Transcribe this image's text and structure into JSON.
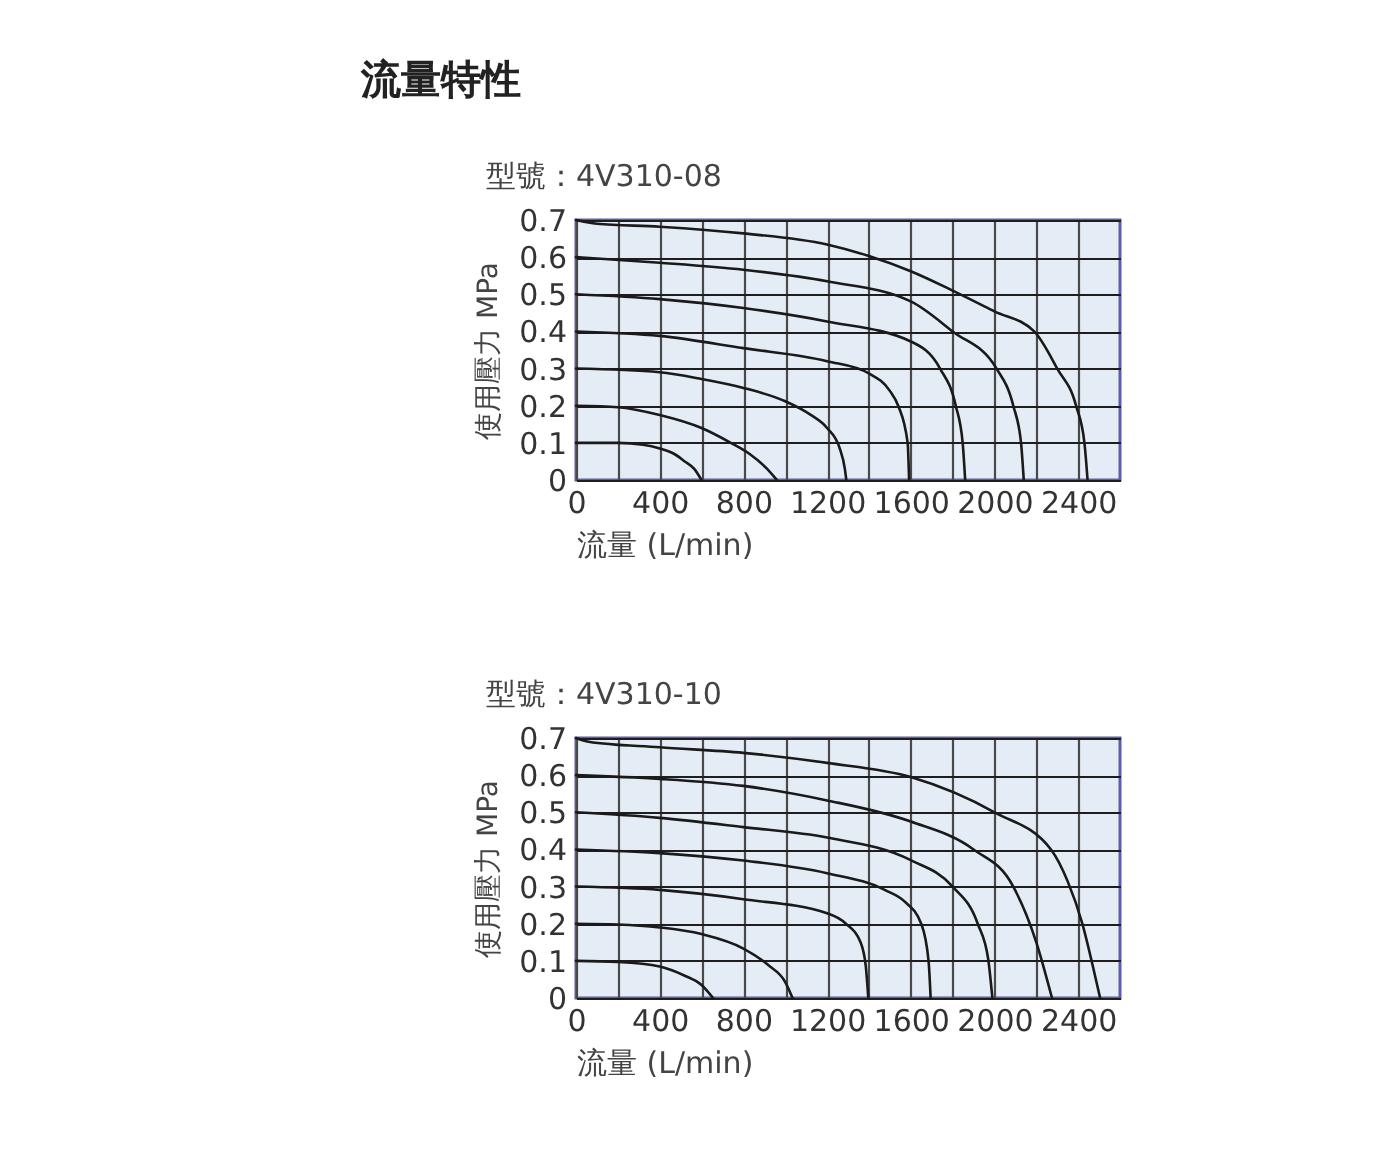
{
  "chart_data": [
    {
      "type": "line",
      "title": "流量特性",
      "subtitle": "型號：4V310-08",
      "xlabel": "流量 (L/min)",
      "ylabel": "使用壓力 MPa",
      "xlim": [
        0,
        2600
      ],
      "xticks": [
        0,
        {
          "value": 200,
          "label": null
        },
        400,
        {
          "value": 600,
          "label": null
        },
        800,
        {
          "value": 1000,
          "label": null
        },
        1200,
        {
          "value": 1400,
          "label": null
        },
        1600,
        {
          "value": 1800,
          "label": null
        },
        2000,
        {
          "value": 2200,
          "label": null
        },
        2400
      ],
      "ylim": [
        0,
        0.7
      ],
      "yticks": [
        0,
        0.1,
        0.2,
        0.3,
        0.4,
        0.5,
        0.6,
        0.7
      ],
      "grid": true,
      "series": [
        {
          "color": "#1a1a1a",
          "x": [
            0,
            200,
            320,
            400,
            470,
            520,
            565,
            600
          ],
          "values": [
            0.1,
            0.1,
            0.095,
            0.085,
            0.07,
            0.05,
            0.03,
            0
          ]
        },
        {
          "color": "#1a1a1a",
          "x": [
            0,
            200,
            400,
            600,
            740,
            830,
            910,
            960
          ],
          "values": [
            0.2,
            0.196,
            0.175,
            0.14,
            0.1,
            0.07,
            0.032,
            0
          ]
        },
        {
          "color": "#1a1a1a",
          "x": [
            0,
            400,
            600,
            800,
            1000,
            1120,
            1200,
            1260,
            1285,
            1292
          ],
          "values": [
            0.3,
            0.29,
            0.272,
            0.248,
            0.212,
            0.176,
            0.14,
            0.086,
            0.03,
            0
          ]
        },
        {
          "color": "#1a1a1a",
          "x": [
            0,
            400,
            800,
            1200,
            1400,
            1500,
            1540,
            1585,
            1592
          ],
          "values": [
            0.4,
            0.388,
            0.355,
            0.32,
            0.287,
            0.24,
            0.2,
            0.1,
            0
          ]
        },
        {
          "color": "#1a1a1a",
          "x": [
            0,
            400,
            800,
            1200,
            1600,
            1740,
            1815,
            1848,
            1860
          ],
          "values": [
            0.5,
            0.487,
            0.463,
            0.427,
            0.373,
            0.3,
            0.2,
            0.1,
            0
          ]
        },
        {
          "color": "#1a1a1a",
          "x": [
            0,
            400,
            800,
            1200,
            1600,
            1800,
            2010,
            2090,
            2127,
            2140
          ],
          "values": [
            0.6,
            0.585,
            0.566,
            0.535,
            0.481,
            0.4,
            0.3,
            0.2,
            0.1,
            0
          ]
        },
        {
          "color": "#1a1a1a",
          "x": [
            0,
            100,
            400,
            800,
            1200,
            1400,
            1600,
            1800,
            2000,
            2190,
            2300,
            2390,
            2430,
            2445
          ],
          "values": [
            0.7,
            0.69,
            0.682,
            0.664,
            0.634,
            0.603,
            0.562,
            0.51,
            0.454,
            0.4,
            0.3,
            0.2,
            0.1,
            0
          ]
        }
      ]
    },
    {
      "type": "line",
      "subtitle": "型號：4V310-10",
      "xlabel": "流量 (L/min)",
      "ylabel": "使用壓力 MPa",
      "xlim": [
        0,
        2600
      ],
      "xticks": [
        0,
        {
          "value": 200,
          "label": null
        },
        400,
        {
          "value": 600,
          "label": null
        },
        800,
        {
          "value": 1000,
          "label": null
        },
        1200,
        {
          "value": 1400,
          "label": null
        },
        1600,
        {
          "value": 1800,
          "label": null
        },
        2000,
        {
          "value": 2200,
          "label": null
        },
        2400
      ],
      "ylim": [
        0,
        0.7
      ],
      "yticks": [
        0,
        0.1,
        0.2,
        0.3,
        0.4,
        0.5,
        0.6,
        0.7
      ],
      "grid": true,
      "series": [
        {
          "color": "#1a1a1a",
          "x": [
            0,
            200,
            400,
            520,
            600,
            655
          ],
          "values": [
            0.1,
            0.097,
            0.085,
            0.06,
            0.035,
            0
          ]
        },
        {
          "color": "#1a1a1a",
          "x": [
            0,
            200,
            400,
            600,
            800,
            920,
            1000,
            1035
          ],
          "values": [
            0.2,
            0.198,
            0.19,
            0.172,
            0.133,
            0.088,
            0.043,
            0
          ]
        },
        {
          "color": "#1a1a1a",
          "x": [
            0,
            400,
            800,
            1200,
            1290,
            1360,
            1385,
            1397
          ],
          "values": [
            0.3,
            0.291,
            0.266,
            0.228,
            0.2,
            0.15,
            0.086,
            0
          ]
        },
        {
          "color": "#1a1a1a",
          "x": [
            0,
            400,
            800,
            1200,
            1480,
            1570,
            1650,
            1685,
            1695
          ],
          "values": [
            0.4,
            0.39,
            0.37,
            0.336,
            0.29,
            0.26,
            0.2,
            0.1,
            0
          ]
        },
        {
          "color": "#1a1a1a",
          "x": [
            0,
            400,
            800,
            1200,
            1600,
            1800,
            1920,
            1970,
            1990
          ],
          "values": [
            0.5,
            0.485,
            0.46,
            0.432,
            0.371,
            0.3,
            0.2,
            0.105,
            0
          ]
        },
        {
          "color": "#1a1a1a",
          "x": [
            0,
            400,
            800,
            1200,
            1600,
            1900,
            2090,
            2200,
            2275
          ],
          "values": [
            0.6,
            0.59,
            0.571,
            0.532,
            0.475,
            0.4,
            0.3,
            0.15,
            0
          ]
        },
        {
          "color": "#1a1a1a",
          "x": [
            0,
            60,
            400,
            800,
            1200,
            1600,
            2000,
            2270,
            2350,
            2420,
            2470,
            2505
          ],
          "values": [
            0.7,
            0.69,
            0.675,
            0.66,
            0.633,
            0.595,
            0.5,
            0.4,
            0.314,
            0.2,
            0.086,
            0
          ]
        }
      ]
    }
  ]
}
